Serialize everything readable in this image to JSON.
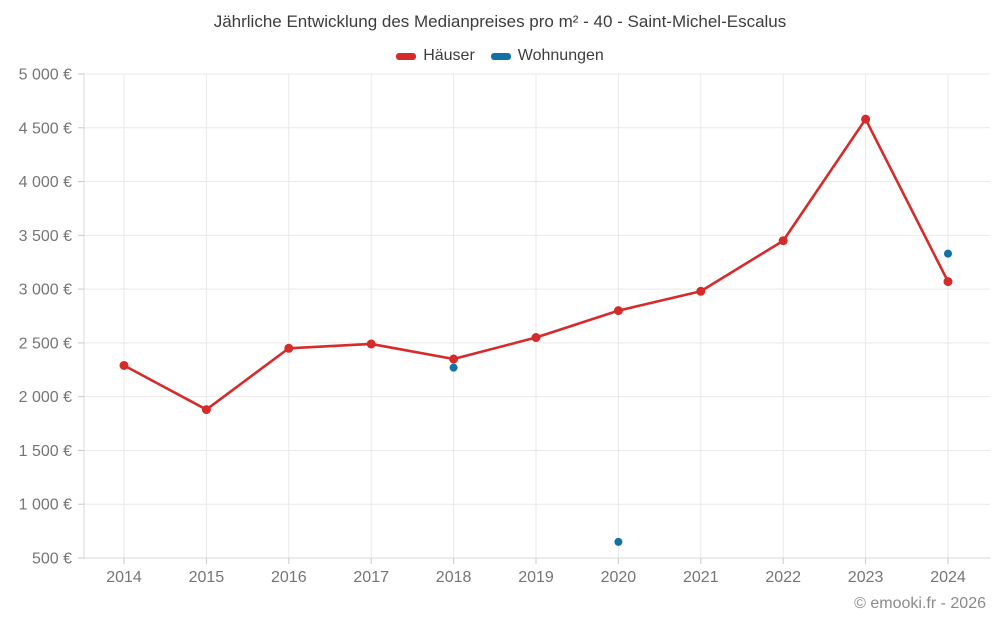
{
  "title": "Jährliche Entwicklung des Medianpreises pro m² - 40 - Saint-Michel-Escalus",
  "legend": {
    "items": [
      {
        "label": "Häuser",
        "color": "#d62b2b"
      },
      {
        "label": "Wohnungen",
        "color": "#1272a3"
      }
    ]
  },
  "footer": {
    "credit": "© emooki.fr - 2026"
  },
  "colors": {
    "grid": "#e9e9e9",
    "axis": "#d9d9d9",
    "tick": "#c9c9c9",
    "label": "#757575"
  },
  "chart_data": {
    "type": "line",
    "title": "Jährliche Entwicklung des Medianpreises pro m² - 40 - Saint-Michel-Escalus",
    "x": [
      "2014",
      "2015",
      "2016",
      "2017",
      "2018",
      "2019",
      "2020",
      "2021",
      "2022",
      "2023",
      "2024"
    ],
    "series": [
      {
        "name": "Häuser",
        "color": "#d62b2b",
        "style": "line+markers",
        "values": [
          2290,
          1880,
          2450,
          2490,
          2350,
          2550,
          2800,
          2980,
          3450,
          4580,
          3070
        ]
      },
      {
        "name": "Wohnungen",
        "color": "#1272a3",
        "style": "markers",
        "values": [
          null,
          null,
          null,
          null,
          2270,
          null,
          650,
          null,
          null,
          null,
          3330
        ]
      }
    ],
    "xlabel": "",
    "ylabel": "",
    "ylim": [
      500,
      5000
    ],
    "ytick_values": [
      500,
      1000,
      1500,
      2000,
      2500,
      3000,
      3500,
      4000,
      4500,
      5000
    ],
    "yticks": [
      "500 €",
      "1 000 €",
      "1 500 €",
      "2 000 €",
      "2 500 €",
      "3 000 €",
      "3 500 €",
      "4 000 €",
      "4 500 €",
      "5 000 €"
    ],
    "grid": true,
    "legend_position": "top",
    "footer": "© emooki.fr - 2026"
  }
}
